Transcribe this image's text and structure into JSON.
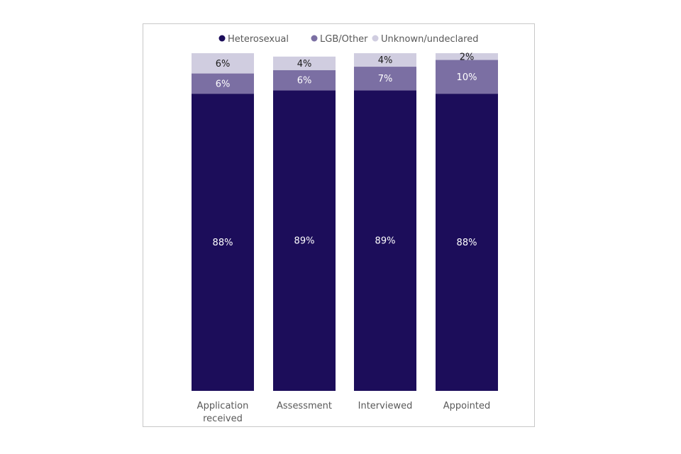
{
  "chart_data": {
    "type": "bar",
    "stacked": true,
    "orientation": "vertical",
    "categories": [
      "Application received",
      "Assessment",
      "Interviewed",
      "Appointed"
    ],
    "series": [
      {
        "name": "Heterosexual",
        "values": [
          88,
          89,
          89,
          88
        ],
        "color": "#1c0d5a",
        "label_color": "#ffffff"
      },
      {
        "name": "LGB/Other",
        "values": [
          6,
          6,
          7,
          10
        ],
        "color": "#7b6fa3",
        "label_color": "#ffffff"
      },
      {
        "name": "Unknown/undeclared",
        "values": [
          6,
          4,
          4,
          2
        ],
        "color": "#d0cde0",
        "label_color": "#1a1a1a"
      }
    ],
    "value_suffix": "%",
    "ylim": [
      0,
      100
    ],
    "legend_position": "top-center",
    "grid": false,
    "axes_visible": false
  }
}
